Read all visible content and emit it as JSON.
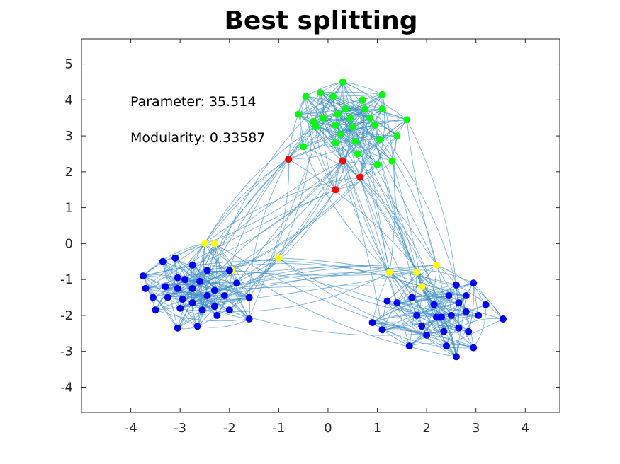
{
  "title": "Best splitting",
  "annotations": {
    "parameter": "Parameter: 35.514",
    "modularity": "Modularity: 0.33587"
  },
  "colors": {
    "edge": "#3e8fc7",
    "group_green": "#00ff00",
    "group_red": "#ff0000",
    "group_yellow": "#ffff00",
    "group_blue": "#0000ff",
    "axis": "#262626"
  },
  "axes": {
    "xlim": [
      -5,
      4.7
    ],
    "ylim": [
      -4.7,
      5.7
    ],
    "xticks": [
      -4,
      -3,
      -2,
      -1,
      0,
      1,
      2,
      3,
      4
    ],
    "yticks": [
      -4,
      -3,
      -2,
      -1,
      0,
      1,
      2,
      3,
      4,
      5
    ]
  },
  "nodes": {
    "green": [
      [
        -0.45,
        4.1
      ],
      [
        -0.15,
        4.2
      ],
      [
        0.1,
        4.1
      ],
      [
        0.3,
        4.5
      ],
      [
        0.7,
        4.0
      ],
      [
        1.1,
        4.15
      ],
      [
        -0.6,
        3.6
      ],
      [
        -0.3,
        3.4
      ],
      [
        -0.1,
        3.5
      ],
      [
        0.35,
        3.75
      ],
      [
        0.75,
        3.75
      ],
      [
        1.1,
        3.75
      ],
      [
        1.6,
        3.45
      ],
      [
        -0.25,
        3.25
      ],
      [
        0.15,
        3.3
      ],
      [
        0.5,
        3.25
      ],
      [
        0.95,
        3.3
      ],
      [
        0.25,
        3.05
      ],
      [
        0.55,
        2.85
      ],
      [
        1.05,
        2.9
      ],
      [
        1.4,
        3.0
      ],
      [
        0.15,
        2.8
      ],
      [
        0.6,
        2.5
      ],
      [
        1.0,
        2.2
      ],
      [
        1.3,
        2.3
      ],
      [
        -0.5,
        2.7
      ],
      [
        0.45,
        3.5
      ],
      [
        0.85,
        3.5
      ],
      [
        0.2,
        3.6
      ]
    ],
    "red": [
      [
        -0.8,
        2.35
      ],
      [
        0.3,
        2.3
      ],
      [
        0.65,
        1.85
      ],
      [
        0.15,
        1.5
      ]
    ],
    "yellow": [
      [
        -2.5,
        0.0
      ],
      [
        -2.3,
        0.0
      ],
      [
        -1.95,
        -0.75
      ],
      [
        -1.0,
        -0.4
      ],
      [
        1.25,
        -0.8
      ],
      [
        1.8,
        -0.8
      ],
      [
        2.2,
        -0.6
      ],
      [
        1.9,
        -1.2
      ]
    ],
    "blue": [
      [
        -3.75,
        -0.9
      ],
      [
        -3.7,
        -1.25
      ],
      [
        -3.55,
        -1.5
      ],
      [
        -3.5,
        -1.85
      ],
      [
        -3.35,
        -0.5
      ],
      [
        -3.3,
        -1.2
      ],
      [
        -3.25,
        -1.5
      ],
      [
        -3.1,
        -0.4
      ],
      [
        -3.05,
        -0.95
      ],
      [
        -3.05,
        -1.25
      ],
      [
        -2.95,
        -1.55
      ],
      [
        -3.0,
        -1.8
      ],
      [
        -2.9,
        -1.0
      ],
      [
        -2.75,
        -0.6
      ],
      [
        -2.75,
        -1.25
      ],
      [
        -2.75,
        -1.65
      ],
      [
        -2.6,
        -1.05
      ],
      [
        -2.55,
        -1.85
      ],
      [
        -2.45,
        -1.45
      ],
      [
        -2.45,
        -0.75
      ],
      [
        -2.3,
        -1.3
      ],
      [
        -2.3,
        -1.75
      ],
      [
        -2.25,
        -2.0
      ],
      [
        -2.1,
        -1.45
      ],
      [
        -2.0,
        -0.75
      ],
      [
        -1.85,
        -1.1
      ],
      [
        -1.6,
        -1.5
      ],
      [
        -1.6,
        -2.1
      ],
      [
        -2.0,
        -1.85
      ],
      [
        -3.05,
        -2.35
      ],
      [
        -2.65,
        -2.3
      ],
      [
        1.2,
        -1.6
      ],
      [
        1.4,
        -1.65
      ],
      [
        0.9,
        -2.2
      ],
      [
        1.1,
        -2.4
      ],
      [
        1.65,
        -2.85
      ],
      [
        1.7,
        -1.5
      ],
      [
        1.8,
        -2.0
      ],
      [
        1.9,
        -2.3
      ],
      [
        2.0,
        -2.55
      ],
      [
        2.15,
        -1.7
      ],
      [
        2.2,
        -2.05
      ],
      [
        2.35,
        -2.45
      ],
      [
        2.4,
        -2.85
      ],
      [
        2.45,
        -1.45
      ],
      [
        2.5,
        -2.0
      ],
      [
        2.6,
        -1.15
      ],
      [
        2.65,
        -1.65
      ],
      [
        2.65,
        -2.35
      ],
      [
        2.8,
        -1.9
      ],
      [
        2.85,
        -2.45
      ],
      [
        2.95,
        -2.9
      ],
      [
        2.95,
        -1.1
      ],
      [
        3.05,
        -2.0
      ],
      [
        2.8,
        -1.45
      ],
      [
        2.6,
        -3.15
      ],
      [
        3.2,
        -1.7
      ],
      [
        3.55,
        -2.1
      ],
      [
        2.3,
        -2.05
      ]
    ]
  }
}
